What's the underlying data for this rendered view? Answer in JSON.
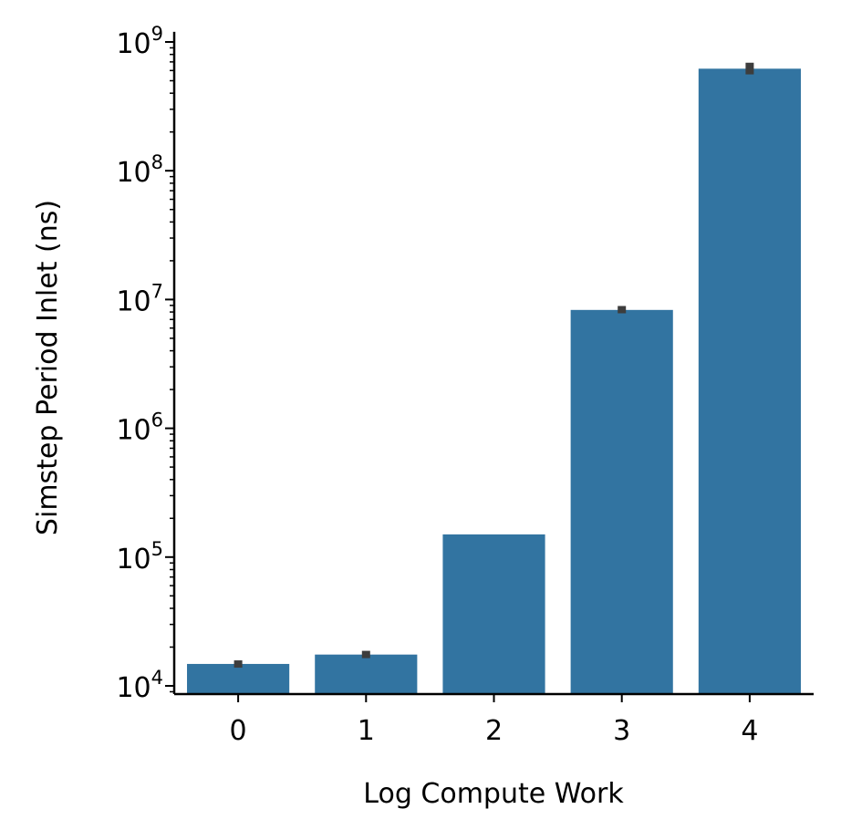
{
  "chart_data": {
    "type": "bar",
    "xlabel": "Log Compute Work",
    "ylabel": "Simstep Period Inlet (ns)",
    "categories": [
      "0",
      "1",
      "2",
      "3",
      "4"
    ],
    "values": [
      14800,
      17500,
      150000,
      8300000,
      620000000
    ],
    "error_bars": [
      [
        14000,
        15600
      ],
      [
        16600,
        18500
      ],
      null,
      [
        8000000,
        8700000
      ],
      [
        560000000,
        690000000
      ]
    ],
    "y_scale": "log",
    "ylim": [
      8500,
      1200000000
    ],
    "y_ticks": [
      {
        "base": "10",
        "exp": "4"
      },
      {
        "base": "10",
        "exp": "5"
      },
      {
        "base": "10",
        "exp": "6"
      },
      {
        "base": "10",
        "exp": "7"
      },
      {
        "base": "10",
        "exp": "8"
      },
      {
        "base": "10",
        "exp": "9"
      }
    ],
    "bar_color": "#3274a1",
    "errorbar_color": "#3d3d3d",
    "grid": false,
    "legend": "none"
  }
}
